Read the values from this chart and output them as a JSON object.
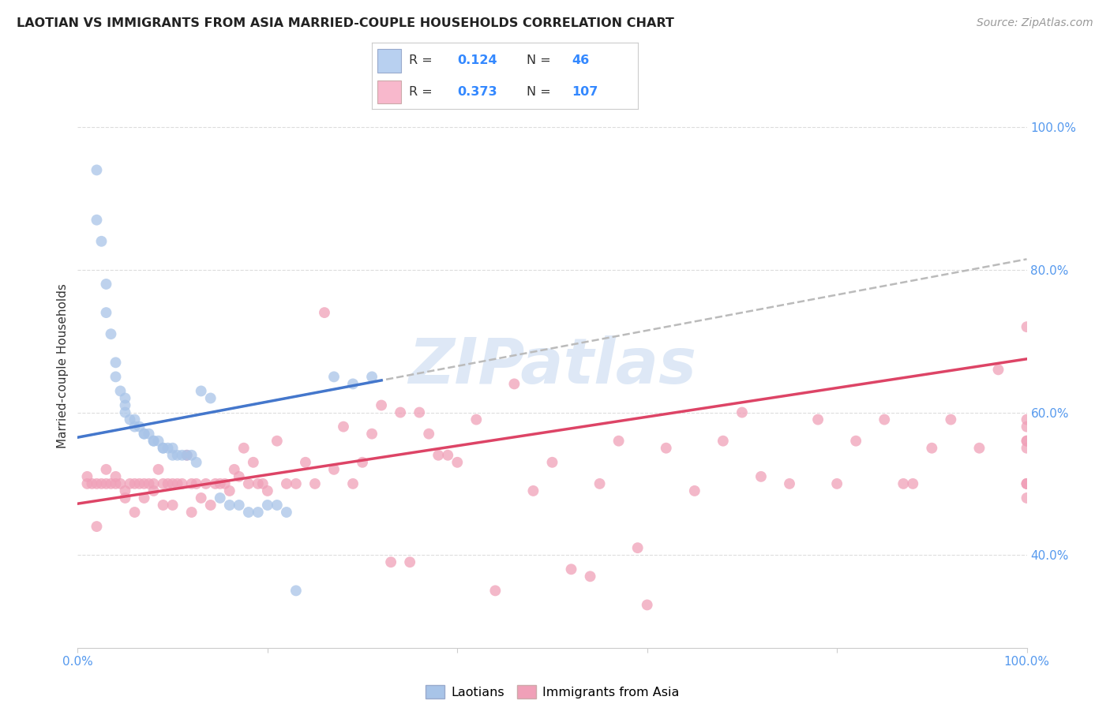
{
  "title": "LAOTIAN VS IMMIGRANTS FROM ASIA MARRIED-COUPLE HOUSEHOLDS CORRELATION CHART",
  "source": "Source: ZipAtlas.com",
  "ylabel": "Married-couple Households",
  "laotian_R": 0.124,
  "laotian_N": 46,
  "asian_R": 0.373,
  "asian_N": 107,
  "scatter_color_laotian": "#a8c4e8",
  "scatter_color_asian": "#f0a0b8",
  "trendline_color_laotian": "#4477cc",
  "trendline_color_asian": "#dd4466",
  "trendline_dashed_color": "#bbbbbb",
  "legend_box_color_laotian": "#b8d0f0",
  "legend_box_color_asian": "#f8b8cc",
  "watermark_color": "#c8daf0",
  "background_color": "#ffffff",
  "grid_color": "#dddddd",
  "xlim": [
    0.0,
    1.0
  ],
  "ylim": [
    0.27,
    1.06
  ],
  "ytick_vals": [
    0.4,
    0.6,
    0.8,
    1.0
  ],
  "ytick_labels": [
    "40.0%",
    "60.0%",
    "80.0%",
    "100.0%"
  ],
  "laotian_x": [
    0.02,
    0.02,
    0.025,
    0.03,
    0.03,
    0.035,
    0.04,
    0.04,
    0.045,
    0.05,
    0.05,
    0.05,
    0.055,
    0.06,
    0.06,
    0.065,
    0.07,
    0.07,
    0.075,
    0.08,
    0.08,
    0.085,
    0.09,
    0.09,
    0.095,
    0.1,
    0.1,
    0.105,
    0.11,
    0.115,
    0.12,
    0.125,
    0.13,
    0.14,
    0.15,
    0.16,
    0.17,
    0.18,
    0.19,
    0.2,
    0.21,
    0.22,
    0.23,
    0.27,
    0.29,
    0.31
  ],
  "laotian_y": [
    0.94,
    0.87,
    0.84,
    0.78,
    0.74,
    0.71,
    0.67,
    0.65,
    0.63,
    0.62,
    0.61,
    0.6,
    0.59,
    0.59,
    0.58,
    0.58,
    0.57,
    0.57,
    0.57,
    0.56,
    0.56,
    0.56,
    0.55,
    0.55,
    0.55,
    0.55,
    0.54,
    0.54,
    0.54,
    0.54,
    0.54,
    0.53,
    0.63,
    0.62,
    0.48,
    0.47,
    0.47,
    0.46,
    0.46,
    0.47,
    0.47,
    0.46,
    0.35,
    0.65,
    0.64,
    0.65
  ],
  "asian_x": [
    0.01,
    0.01,
    0.015,
    0.02,
    0.02,
    0.025,
    0.03,
    0.03,
    0.035,
    0.04,
    0.04,
    0.045,
    0.05,
    0.05,
    0.055,
    0.06,
    0.06,
    0.065,
    0.07,
    0.07,
    0.075,
    0.08,
    0.08,
    0.085,
    0.09,
    0.09,
    0.095,
    0.1,
    0.1,
    0.105,
    0.11,
    0.115,
    0.12,
    0.12,
    0.125,
    0.13,
    0.135,
    0.14,
    0.145,
    0.15,
    0.155,
    0.16,
    0.165,
    0.17,
    0.175,
    0.18,
    0.185,
    0.19,
    0.195,
    0.2,
    0.21,
    0.22,
    0.23,
    0.24,
    0.25,
    0.26,
    0.27,
    0.28,
    0.29,
    0.3,
    0.31,
    0.32,
    0.33,
    0.34,
    0.35,
    0.36,
    0.37,
    0.38,
    0.39,
    0.4,
    0.42,
    0.44,
    0.46,
    0.48,
    0.5,
    0.52,
    0.54,
    0.55,
    0.57,
    0.59,
    0.6,
    0.62,
    0.65,
    0.68,
    0.7,
    0.72,
    0.75,
    0.78,
    0.8,
    0.82,
    0.85,
    0.87,
    0.88,
    0.9,
    0.92,
    0.95,
    0.97,
    1.0,
    1.0,
    1.0,
    1.0,
    1.0,
    1.0,
    1.0,
    1.0,
    1.0,
    1.0
  ],
  "asian_y": [
    0.5,
    0.51,
    0.5,
    0.44,
    0.5,
    0.5,
    0.5,
    0.52,
    0.5,
    0.5,
    0.51,
    0.5,
    0.48,
    0.49,
    0.5,
    0.46,
    0.5,
    0.5,
    0.48,
    0.5,
    0.5,
    0.49,
    0.5,
    0.52,
    0.47,
    0.5,
    0.5,
    0.47,
    0.5,
    0.5,
    0.5,
    0.54,
    0.46,
    0.5,
    0.5,
    0.48,
    0.5,
    0.47,
    0.5,
    0.5,
    0.5,
    0.49,
    0.52,
    0.51,
    0.55,
    0.5,
    0.53,
    0.5,
    0.5,
    0.49,
    0.56,
    0.5,
    0.5,
    0.53,
    0.5,
    0.74,
    0.52,
    0.58,
    0.5,
    0.53,
    0.57,
    0.61,
    0.39,
    0.6,
    0.39,
    0.6,
    0.57,
    0.54,
    0.54,
    0.53,
    0.59,
    0.35,
    0.64,
    0.49,
    0.53,
    0.38,
    0.37,
    0.5,
    0.56,
    0.41,
    0.33,
    0.55,
    0.49,
    0.56,
    0.6,
    0.51,
    0.5,
    0.59,
    0.5,
    0.56,
    0.59,
    0.5,
    0.5,
    0.55,
    0.59,
    0.55,
    0.66,
    0.56,
    0.72,
    0.56,
    0.59,
    0.58,
    0.55,
    0.5,
    0.5,
    0.48,
    0.5
  ],
  "laotian_trend_x0": 0.0,
  "laotian_trend_y0": 0.565,
  "laotian_trend_x1": 0.32,
  "laotian_trend_y1": 0.645,
  "asian_trend_x0": 0.0,
  "asian_trend_y0": 0.472,
  "asian_trend_x1": 1.0,
  "asian_trend_y1": 0.675,
  "dashed_trend_x0": 0.0,
  "dashed_trend_y0": 0.565,
  "dashed_trend_x1": 1.0,
  "dashed_trend_y1": 0.815
}
